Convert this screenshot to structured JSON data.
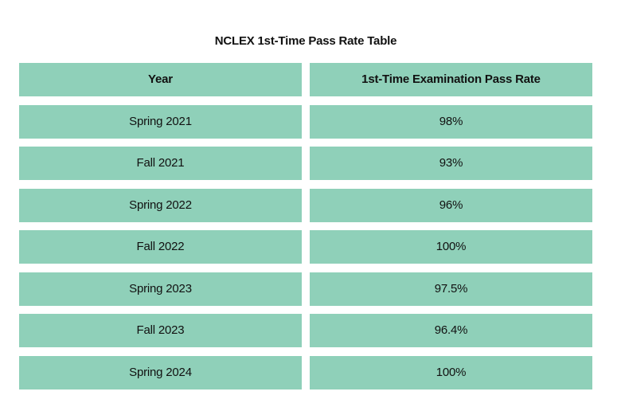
{
  "table": {
    "caption": "NCLEX 1st-Time Pass Rate Table",
    "headers": [
      "Year",
      "1st-Time Examination Pass Rate"
    ],
    "rows": [
      [
        "Spring 2021",
        "98%"
      ],
      [
        "Fall 2021",
        "93%"
      ],
      [
        "Spring 2022",
        "96%"
      ],
      [
        "Fall 2022",
        "100%"
      ],
      [
        "Spring 2023",
        "97.5%"
      ],
      [
        "Fall 2023",
        "96.4%"
      ],
      [
        "Spring 2024",
        "100%"
      ]
    ]
  },
  "colors": {
    "cell_background": "#8fd0b9",
    "text": "#111111"
  }
}
